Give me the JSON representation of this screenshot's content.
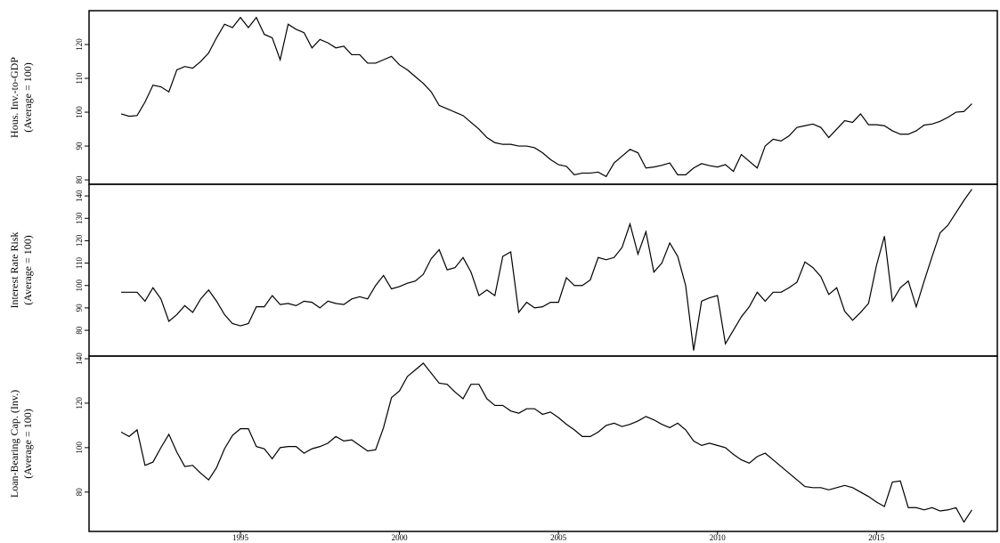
{
  "chart_data": [
    {
      "type": "line",
      "ylabel": [
        "Hous. Inv.-to-GDP",
        "(Average = 100)"
      ],
      "color": "#000000",
      "x": [
        1991.25,
        1991.5,
        1991.75,
        1992,
        1992.25,
        1992.5,
        1992.75,
        1993,
        1993.25,
        1993.5,
        1993.75,
        1994,
        1994.25,
        1994.5,
        1994.75,
        1995,
        1995.25,
        1995.5,
        1995.75,
        1996,
        1996.25,
        1996.5,
        1996.75,
        1997,
        1997.25,
        1997.5,
        1997.75,
        1998,
        1998.25,
        1998.5,
        1998.75,
        1999,
        1999.25,
        1999.5,
        1999.75,
        2000,
        2000.25,
        2000.5,
        2000.75,
        2001,
        2001.25,
        2001.5,
        2001.75,
        2002,
        2002.25,
        2002.5,
        2002.75,
        2003,
        2003.25,
        2003.5,
        2003.75,
        2004,
        2004.25,
        2004.5,
        2004.75,
        2005,
        2005.25,
        2005.5,
        2005.75,
        2006,
        2006.25,
        2006.5,
        2006.75,
        2007,
        2007.25,
        2007.5,
        2007.75,
        2008,
        2008.25,
        2008.5,
        2008.75,
        2009,
        2009.25,
        2009.5,
        2009.75,
        2010,
        2010.25,
        2010.5,
        2010.75,
        2011,
        2011.25,
        2011.5,
        2011.75,
        2012,
        2012.25,
        2012.5,
        2012.75,
        2013,
        2013.25,
        2013.5,
        2013.75,
        2014,
        2014.25,
        2014.5,
        2014.75,
        2015,
        2015.25,
        2015.5,
        2015.75,
        2016,
        2016.25,
        2016.5,
        2016.75,
        2017,
        2017.25,
        2017.5,
        2017.75,
        2018
      ],
      "values": [
        99.5,
        98.8,
        99,
        103,
        108,
        107.5,
        106,
        112.5,
        113.5,
        113,
        115,
        117.5,
        122,
        126,
        125,
        128,
        125,
        128,
        123,
        122,
        115.5,
        126,
        124.5,
        123.5,
        119,
        121.5,
        120.5,
        119,
        119.5,
        117,
        117,
        114.5,
        114.5,
        115.5,
        116.5,
        114,
        112.5,
        110.5,
        108.5,
        106,
        102,
        101,
        100,
        99,
        97,
        95,
        92.5,
        91,
        90.5,
        90.5,
        90,
        90,
        89.5,
        88,
        86,
        84.5,
        84,
        81.5,
        82,
        82,
        82.3,
        81,
        85,
        87,
        89,
        88,
        83.5,
        83.8,
        84.3,
        85,
        81.5,
        81.5,
        83.5,
        84.8,
        84.2,
        83.8,
        84.5,
        82.5,
        87.5,
        85.5,
        83.5,
        90,
        92,
        91.5,
        93,
        95.5,
        96,
        96.5,
        95.5,
        92.5,
        95,
        97.5,
        97,
        99.5,
        96.3,
        96.3,
        96,
        94.5,
        93.5,
        93.5,
        94.5,
        96.2,
        96.5,
        97.3,
        98.5,
        100,
        100.2,
        102.5
      ],
      "xlim": [
        1990.24,
        2018.8
      ],
      "ylim": [
        78.7,
        130
      ],
      "yticks": [
        80,
        90,
        100,
        110,
        120
      ]
    },
    {
      "type": "line",
      "ylabel": [
        "Interest Rate Risk",
        "(Average = 100)"
      ],
      "color": "#000000",
      "x": [
        1991.25,
        1991.5,
        1991.75,
        1992,
        1992.25,
        1992.5,
        1992.75,
        1993,
        1993.25,
        1993.5,
        1993.75,
        1994,
        1994.25,
        1994.5,
        1994.75,
        1995,
        1995.25,
        1995.5,
        1995.75,
        1996,
        1996.25,
        1996.5,
        1996.75,
        1997,
        1997.25,
        1997.5,
        1997.75,
        1998,
        1998.25,
        1998.5,
        1998.75,
        1999,
        1999.25,
        1999.5,
        1999.75,
        2000,
        2000.25,
        2000.5,
        2000.75,
        2001,
        2001.25,
        2001.5,
        2001.75,
        2002,
        2002.25,
        2002.5,
        2002.75,
        2003,
        2003.25,
        2003.5,
        2003.75,
        2004,
        2004.25,
        2004.5,
        2004.75,
        2005,
        2005.25,
        2005.5,
        2005.75,
        2006,
        2006.25,
        2006.5,
        2006.75,
        2007,
        2007.25,
        2007.5,
        2007.75,
        2008,
        2008.25,
        2008.5,
        2008.75,
        2009,
        2009.25,
        2009.5,
        2009.75,
        2010,
        2010.25,
        2010.5,
        2010.75,
        2011,
        2011.25,
        2011.5,
        2011.75,
        2012,
        2012.25,
        2012.5,
        2012.75,
        2013,
        2013.25,
        2013.5,
        2013.75,
        2014,
        2014.25,
        2014.5,
        2014.75,
        2015,
        2015.25,
        2015.5,
        2015.75,
        2016,
        2016.25,
        2016.5,
        2016.75,
        2017,
        2017.25,
        2017.5,
        2017.75,
        2018
      ],
      "values": [
        97,
        97,
        97,
        93,
        99,
        94,
        84,
        87,
        91,
        88,
        94,
        98,
        93,
        87,
        83,
        82,
        83,
        90.5,
        90.5,
        95.5,
        91.5,
        92,
        91,
        93,
        92.5,
        90,
        93,
        92,
        91.5,
        94,
        95,
        94,
        100,
        104.5,
        98.5,
        99.5,
        101,
        102,
        105,
        112,
        116,
        107,
        108,
        112.5,
        106,
        95.5,
        98,
        95.5,
        113,
        115,
        88,
        92.5,
        90,
        90.5,
        92.5,
        92.5,
        103.5,
        100,
        100,
        102.5,
        112.5,
        111.5,
        112.5,
        117,
        127.5,
        114,
        124,
        106,
        110,
        119,
        113,
        100,
        71,
        93,
        94.5,
        95.5,
        74,
        80,
        86,
        90.5,
        97,
        93,
        97,
        97,
        99,
        101.5,
        110.5,
        108,
        104,
        96,
        99,
        88.5,
        84.5,
        88,
        92,
        109,
        122,
        93,
        99,
        102,
        90.5,
        102,
        113,
        123.5,
        127,
        132.5,
        138,
        143
      ],
      "xlim": [
        1990.24,
        2018.8
      ],
      "ylim": [
        68.5,
        145.2
      ],
      "yticks": [
        80,
        90,
        100,
        110,
        120,
        130,
        140
      ]
    },
    {
      "type": "line",
      "ylabel": [
        "Loan-Bearing Cap. (Inv.)",
        "(Average = 100)"
      ],
      "color": "#000000",
      "x": [
        1991.25,
        1991.5,
        1991.75,
        1992,
        1992.25,
        1992.5,
        1992.75,
        1993,
        1993.25,
        1993.5,
        1993.75,
        1994,
        1994.25,
        1994.5,
        1994.75,
        1995,
        1995.25,
        1995.5,
        1995.75,
        1996,
        1996.25,
        1996.5,
        1996.75,
        1997,
        1997.25,
        1997.5,
        1997.75,
        1998,
        1998.25,
        1998.5,
        1998.75,
        1999,
        1999.25,
        1999.5,
        1999.75,
        2000,
        2000.25,
        2000.5,
        2000.75,
        2001,
        2001.25,
        2001.5,
        2001.75,
        2002,
        2002.25,
        2002.5,
        2002.75,
        2003,
        2003.25,
        2003.5,
        2003.75,
        2004,
        2004.25,
        2004.5,
        2004.75,
        2005,
        2005.25,
        2005.5,
        2005.75,
        2006,
        2006.25,
        2006.5,
        2006.75,
        2007,
        2007.25,
        2007.5,
        2007.75,
        2008,
        2008.25,
        2008.5,
        2008.75,
        2009,
        2009.25,
        2009.5,
        2009.75,
        2010,
        2010.25,
        2010.5,
        2010.75,
        2011,
        2011.25,
        2011.5,
        2011.75,
        2012,
        2012.25,
        2012.5,
        2012.75,
        2013,
        2013.25,
        2013.5,
        2013.75,
        2014,
        2014.25,
        2014.5,
        2014.75,
        2015,
        2015.25,
        2015.5,
        2015.75,
        2016,
        2016.25,
        2016.5,
        2016.75,
        2017,
        2017.25,
        2017.5,
        2017.75,
        2018
      ],
      "values": [
        107,
        105,
        108,
        92,
        93.5,
        100,
        106,
        98,
        91.5,
        92,
        88.5,
        85.5,
        91,
        99.5,
        105.5,
        108.5,
        108.5,
        100.5,
        99.5,
        95,
        100,
        100.5,
        100.5,
        97.5,
        99.5,
        100.5,
        102,
        105,
        103,
        103.5,
        101,
        98.5,
        99,
        109,
        122.5,
        125.5,
        132,
        135,
        138,
        133.5,
        129,
        128.5,
        125,
        122,
        128.5,
        128.5,
        122,
        119,
        119,
        116.5,
        115.5,
        117.5,
        117.5,
        115,
        116,
        113.5,
        110.5,
        108,
        105,
        105,
        107,
        110,
        111,
        109.5,
        110.5,
        112,
        114,
        112.5,
        110.5,
        109,
        111,
        108,
        103,
        101,
        102,
        101,
        100,
        97,
        94.5,
        93,
        96,
        97.5,
        94.5,
        91.5,
        88.5,
        85.5,
        82.5,
        82,
        82,
        81,
        82,
        83,
        82,
        80,
        78,
        75.5,
        73.5,
        84.5,
        85,
        73,
        73,
        72,
        73,
        71.5,
        72,
        73,
        66.5,
        72
      ],
      "xlim": [
        1990.24,
        2018.8
      ],
      "ylim": [
        62.3,
        141.2
      ],
      "yticks": [
        80,
        100,
        120,
        140
      ],
      "xticks": [
        1995,
        2000,
        2005,
        2010,
        2015
      ]
    }
  ]
}
